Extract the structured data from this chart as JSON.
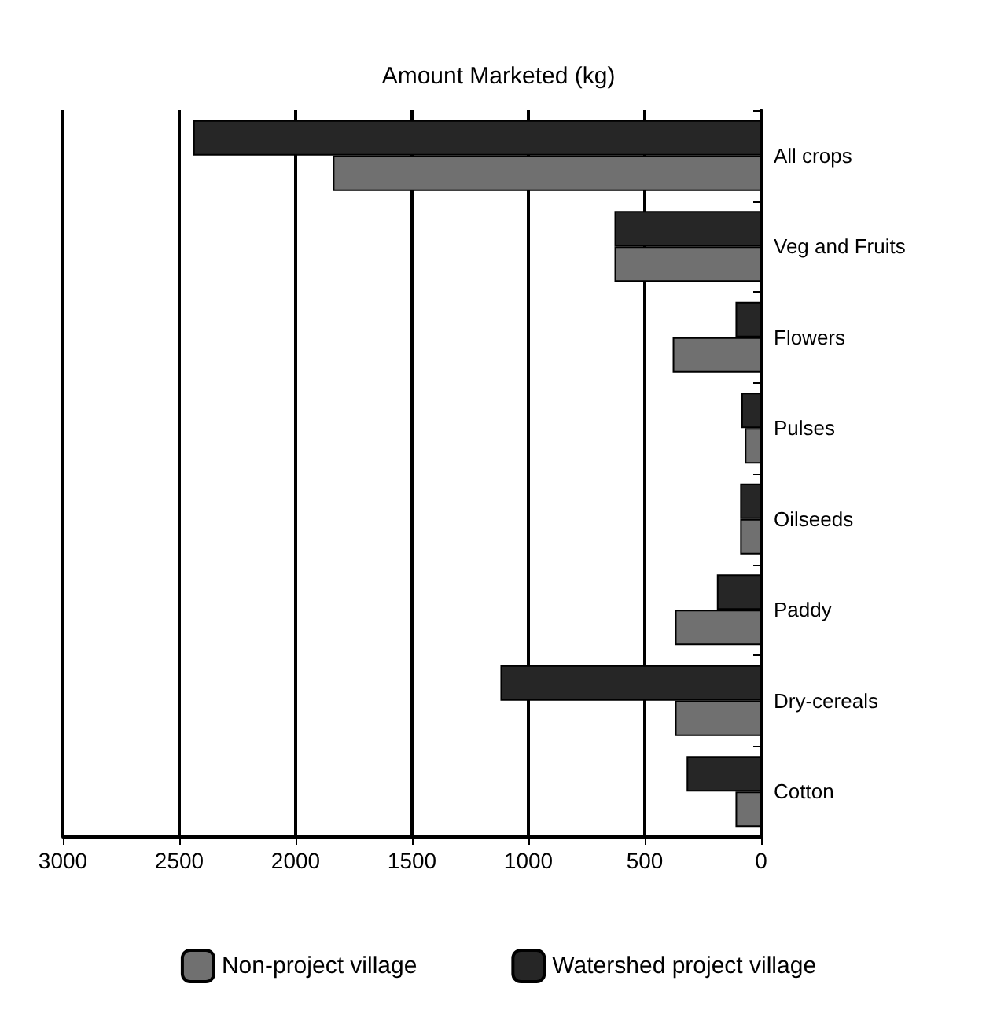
{
  "chart_data": {
    "type": "bar",
    "orientation": "horizontal",
    "xlabel": "Amount Marketed (kg)",
    "categories": [
      "All crops",
      "Veg and Fruits",
      "Flowers",
      "Pulses",
      "Oilseeds",
      "Paddy",
      "Dry-cereals",
      "Cotton"
    ],
    "series": [
      {
        "name": "Non-project village",
        "color": "#707070",
        "values": [
          1840,
          630,
          380,
          70,
          90,
          370,
          370,
          110
        ]
      },
      {
        "name": "Watershed project village",
        "color": "#262626",
        "values": [
          2440,
          630,
          110,
          85,
          90,
          190,
          1120,
          320
        ]
      }
    ],
    "xlim": [
      3000,
      0
    ],
    "xticks": [
      3000,
      2500,
      2000,
      1500,
      1000,
      500,
      0
    ],
    "grid": "x",
    "legend": "bottom"
  }
}
